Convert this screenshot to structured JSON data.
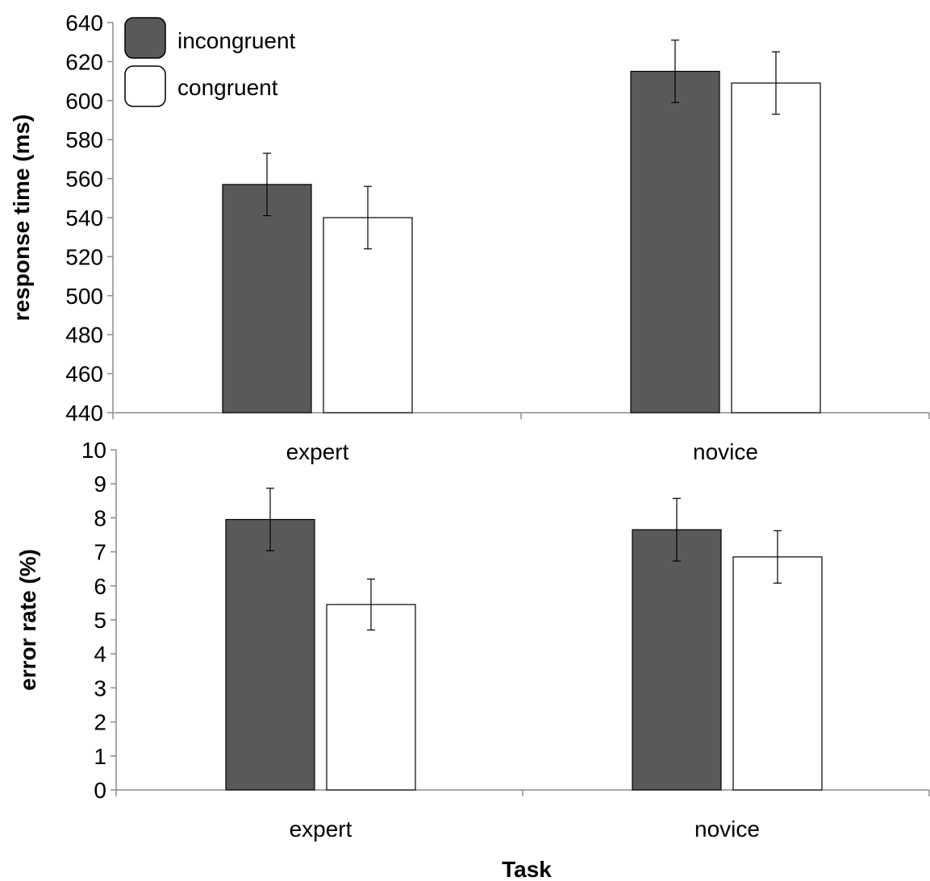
{
  "legend": {
    "placement": "top-left",
    "entries": [
      {
        "label": "incongruent",
        "color": "#595959"
      },
      {
        "label": "congruent",
        "color": "#ffffff"
      }
    ]
  },
  "chart_data": [
    {
      "type": "bar",
      "categories": [
        "expert",
        "novice"
      ],
      "series": [
        {
          "name": "incongruent",
          "color": "#595959",
          "values": [
            557,
            615
          ],
          "errors": [
            16,
            16
          ]
        },
        {
          "name": "congruent",
          "color": "#ffffff",
          "values": [
            540,
            609
          ],
          "errors": [
            16,
            16
          ]
        }
      ],
      "ylabel": "response time (ms)",
      "xlabel": "",
      "ylim": [
        440,
        640
      ],
      "yticks": [
        440,
        460,
        480,
        500,
        520,
        540,
        560,
        580,
        600,
        620,
        640
      ],
      "grid": false
    },
    {
      "type": "bar",
      "categories": [
        "expert",
        "novice"
      ],
      "series": [
        {
          "name": "incongruent",
          "color": "#595959",
          "values": [
            7.95,
            7.65
          ],
          "errors": [
            0.92,
            0.92
          ]
        },
        {
          "name": "congruent",
          "color": "#ffffff",
          "values": [
            5.45,
            6.85
          ],
          "errors": [
            0.75,
            0.77
          ]
        }
      ],
      "ylabel": "error rate (%)",
      "xlabel": "Task",
      "ylim": [
        0,
        10
      ],
      "yticks": [
        0,
        1,
        2,
        3,
        4,
        5,
        6,
        7,
        8,
        9,
        10
      ],
      "grid": false
    }
  ]
}
